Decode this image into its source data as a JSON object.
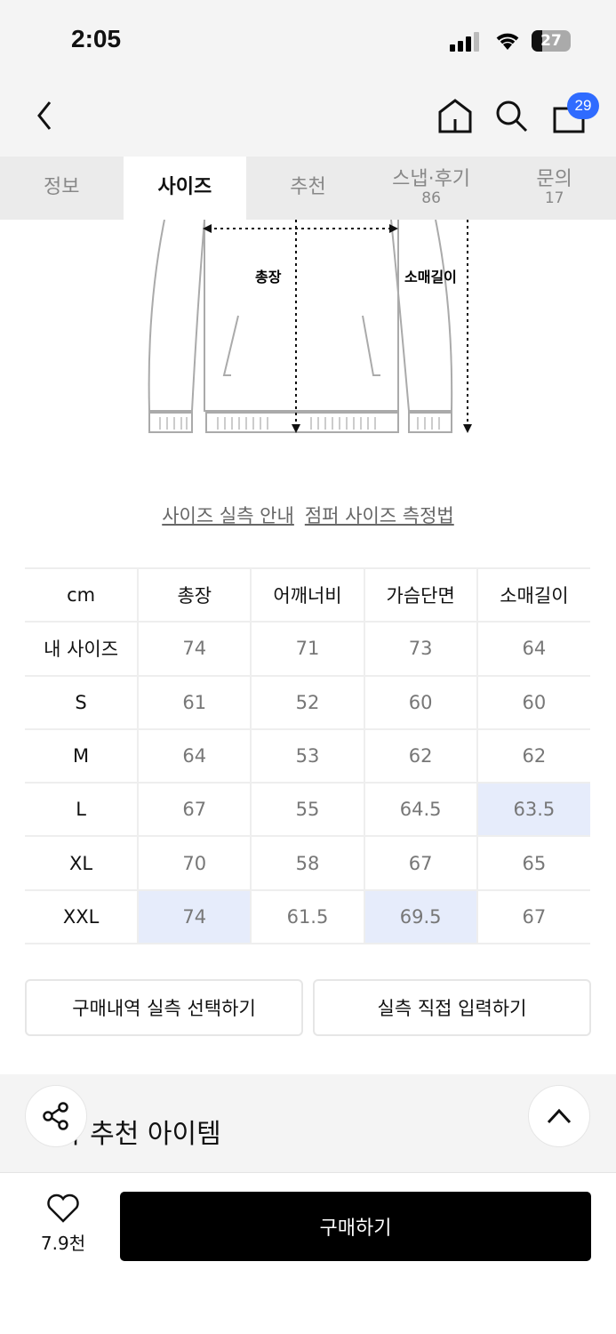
{
  "status": {
    "time": "2:05",
    "battery": "27"
  },
  "header": {
    "cart_count": "29"
  },
  "tabs": [
    {
      "label": "정보"
    },
    {
      "label": "사이즈"
    },
    {
      "label": "추천"
    },
    {
      "label": "스냅·후기",
      "count": "86"
    },
    {
      "label": "문의",
      "count": "17"
    }
  ],
  "active_tab": "사이즈",
  "diagram": {
    "label_length": "총장",
    "label_sleeve": "소매길이"
  },
  "links": {
    "guide": "사이즈 실측 안내",
    "measure": "점퍼 사이즈 측정법"
  },
  "size_table": {
    "headers": [
      "cm",
      "총장",
      "어깨너비",
      "가슴단면",
      "소매길이"
    ],
    "rows": [
      [
        "내 사이즈",
        "74",
        "71",
        "73",
        "64"
      ],
      [
        "S",
        "61",
        "52",
        "60",
        "60"
      ],
      [
        "M",
        "64",
        "53",
        "62",
        "62"
      ],
      [
        "L",
        "67",
        "55",
        "64.5",
        "63.5"
      ],
      [
        "XL",
        "70",
        "58",
        "67",
        "65"
      ],
      [
        "XXL",
        "74",
        "61.5",
        "69.5",
        "67"
      ]
    ],
    "highlight_color": "#e6ecfb"
  },
  "buttons": {
    "select_purchase": "구매내역 실측 선택하기",
    "direct_input": "실측 직접 입력하기"
  },
  "recommend": {
    "title": "과 추천 아이템"
  },
  "bottom": {
    "likes": "7.9천",
    "buy": "구매하기"
  }
}
